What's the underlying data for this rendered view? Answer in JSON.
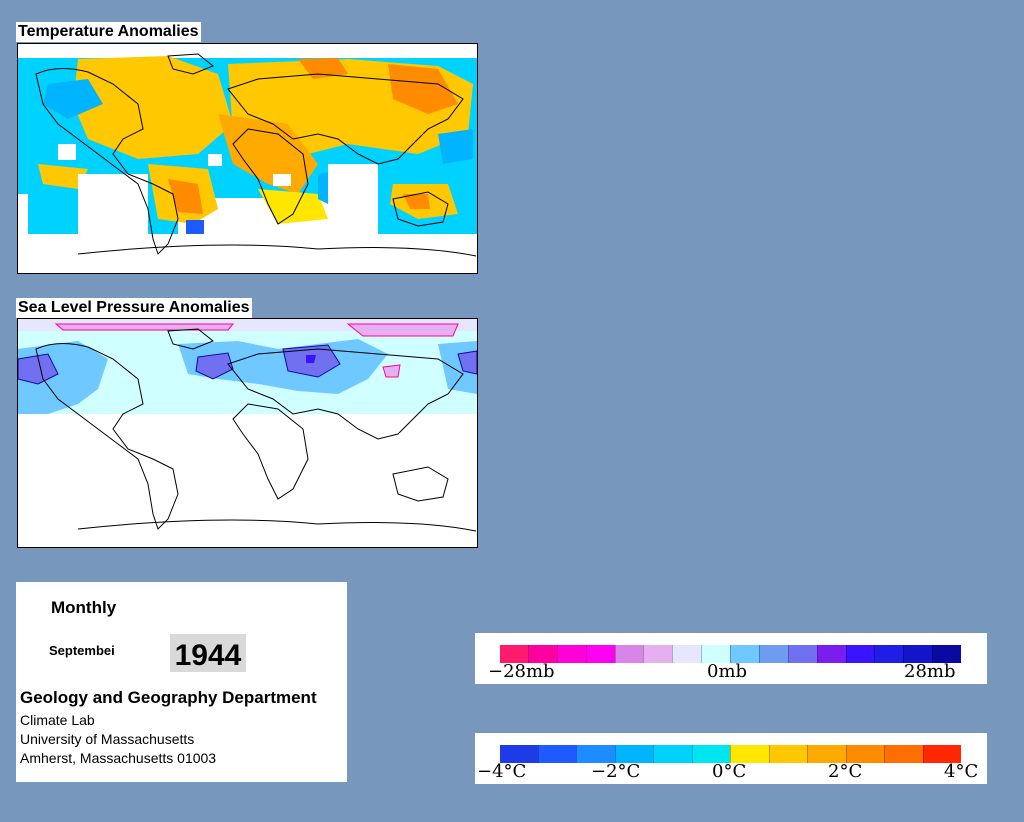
{
  "temperature_map": {
    "title": "Temperature Anomalies"
  },
  "pressure_map": {
    "title": "Sea Level Pressure Anomalies"
  },
  "info": {
    "period": "Monthly",
    "month": "Septembei",
    "year": "1944",
    "department": "Geology and Geography Department",
    "lab": "Climate Lab",
    "university": "University of Massachusetts",
    "address": "Amherst, Massachusetts 01003"
  },
  "pressure_legend": {
    "labels": [
      "−28mb",
      "0mb",
      "28mb"
    ],
    "colors": [
      "#ff1a6e",
      "#ff00a0",
      "#ff00d8",
      "#ff00f0",
      "#d884e8",
      "#e6b0f0",
      "#e6e6ff",
      "#d0ffff",
      "#6fc8ff",
      "#6e9cf0",
      "#7070f0",
      "#7a1ef0",
      "#3b14ff",
      "#1e1ee6",
      "#1414c8",
      "#0a0aa0"
    ]
  },
  "temperature_legend": {
    "labels": [
      "−4°C",
      "−2°C",
      "0°C",
      "2°C",
      "4°C"
    ],
    "colors": [
      "#1e3ce6",
      "#1e5aff",
      "#1e8cff",
      "#00b4ff",
      "#00d2ff",
      "#00e6f0",
      "#ffe600",
      "#ffc800",
      "#ffaa00",
      "#ff8c00",
      "#ff6e00",
      "#ff2800"
    ]
  }
}
